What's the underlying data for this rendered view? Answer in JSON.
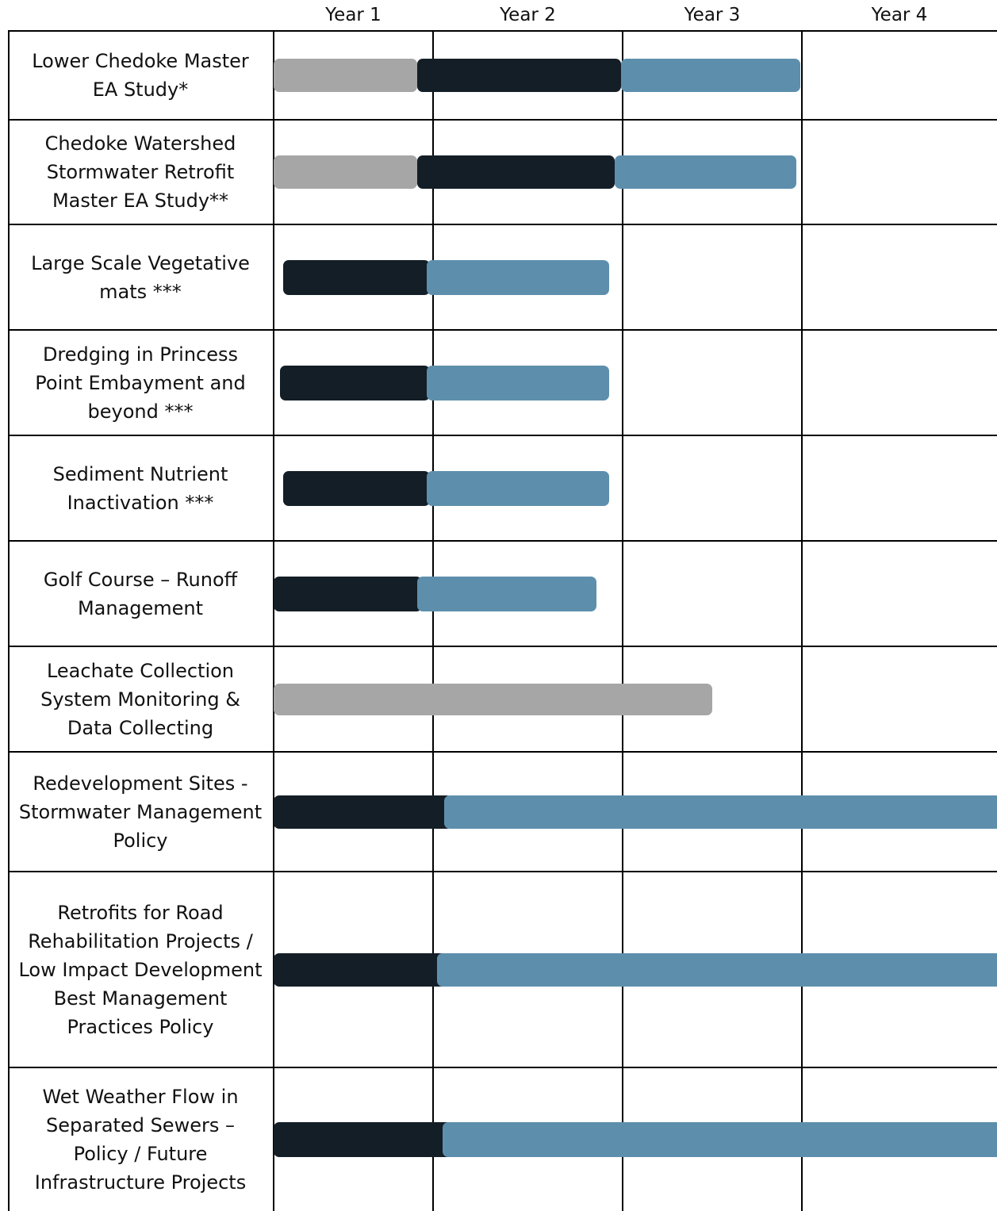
{
  "chart_data": {
    "type": "gantt",
    "years": [
      "Year 1",
      "Year 2",
      "Year 3",
      "Year 4"
    ],
    "phase_colors": {
      "gray": "#a6a6a6",
      "dark": "#141e26",
      "blue": "#5d8fad"
    },
    "tasks": [
      {
        "label": "Lower Chedoke Master\nEA Study*",
        "segments": [
          {
            "phase": "gray",
            "start": 0.0,
            "end": 0.9
          },
          {
            "phase": "dark",
            "start": 0.9,
            "end": 1.99
          },
          {
            "phase": "blue",
            "start": 1.99,
            "end": 2.99
          }
        ]
      },
      {
        "label": "Chedoke Watershed\nStormwater Retrofit\nMaster EA Study**",
        "segments": [
          {
            "phase": "gray",
            "start": 0.0,
            "end": 0.9
          },
          {
            "phase": "dark",
            "start": 0.9,
            "end": 1.96
          },
          {
            "phase": "blue",
            "start": 1.96,
            "end": 2.97
          }
        ]
      },
      {
        "label": "Large Scale Vegetative\nmats ***",
        "segments": [
          {
            "phase": "dark",
            "start": 0.06,
            "end": 0.98
          },
          {
            "phase": "blue",
            "start": 0.96,
            "end": 1.93
          }
        ]
      },
      {
        "label": "Dredging in Princess\nPoint Embayment and\nbeyond ***",
        "segments": [
          {
            "phase": "dark",
            "start": 0.04,
            "end": 0.98
          },
          {
            "phase": "blue",
            "start": 0.96,
            "end": 1.93
          }
        ]
      },
      {
        "label": "Sediment Nutrient\nInactivation ***",
        "segments": [
          {
            "phase": "dark",
            "start": 0.06,
            "end": 0.98
          },
          {
            "phase": "blue",
            "start": 0.96,
            "end": 1.93
          }
        ]
      },
      {
        "label": "Golf Course – Runoff\nManagement",
        "segments": [
          {
            "phase": "dark",
            "start": 0.0,
            "end": 0.93
          },
          {
            "phase": "blue",
            "start": 0.9,
            "end": 1.86
          }
        ]
      },
      {
        "label": "Leachate Collection\nSystem Monitoring &\nData Collecting",
        "segments": [
          {
            "phase": "gray",
            "start": 0.0,
            "end": 2.5
          }
        ]
      },
      {
        "label": "Redevelopment Sites -\nStormwater Management\nPolicy",
        "segments": [
          {
            "phase": "dark",
            "start": 0.0,
            "end": 1.1
          },
          {
            "phase": "blue",
            "start": 1.06,
            "end": 4.0
          }
        ]
      },
      {
        "label": "Retrofits for Road\nRehabilitation Projects /\nLow Impact Development\nBest Management\nPractices Policy",
        "segments": [
          {
            "phase": "dark",
            "start": 0.0,
            "end": 1.1
          },
          {
            "phase": "blue",
            "start": 1.02,
            "end": 4.0
          }
        ]
      },
      {
        "label": "Wet Weather Flow in\nSeparated Sewers –\nPolicy / Future\nInfrastructure Projects",
        "segments": [
          {
            "phase": "dark",
            "start": 0.0,
            "end": 1.1
          },
          {
            "phase": "blue",
            "start": 1.05,
            "end": 4.0
          }
        ]
      }
    ]
  }
}
